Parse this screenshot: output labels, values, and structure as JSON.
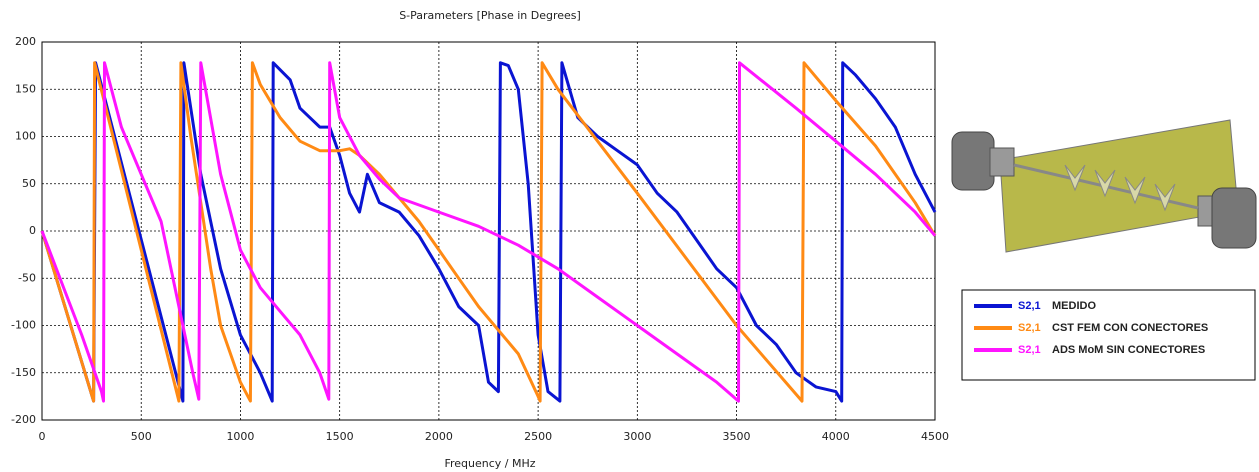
{
  "chart_data": {
    "type": "line",
    "title": "S-Parameters [Phase in Degrees]",
    "x_label": "Frequency / MHz",
    "xlim": [
      0,
      4500
    ],
    "xticks": [
      0,
      500,
      1000,
      1500,
      2000,
      2500,
      3000,
      3500,
      4000,
      4500
    ],
    "ylim": [
      -200,
      200
    ],
    "yticks": [
      -200,
      -150,
      -100,
      -50,
      0,
      50,
      100,
      150,
      200
    ],
    "grid": true,
    "series": [
      {
        "name": "MEDIDO",
        "parameter": "S2,1",
        "color": "#0a14d2",
        "x": [
          0,
          260,
          270,
          710,
          715,
          800,
          900,
          1000,
          1100,
          1160,
          1165,
          1250,
          1300,
          1400,
          1450,
          1500,
          1550,
          1600,
          1640,
          1700,
          1800,
          1900,
          2000,
          2100,
          2200,
          2250,
          2300,
          2310,
          2350,
          2400,
          2450,
          2500,
          2550,
          2610,
          2620,
          2700,
          2800,
          2900,
          3000,
          3100,
          3200,
          3300,
          3400,
          3500,
          3600,
          3700,
          3800,
          3900,
          4000,
          4030,
          4035,
          4100,
          4200,
          4300,
          4400,
          4450,
          4500
        ],
        "values": [
          0,
          -180,
          178,
          -180,
          178,
          60,
          -40,
          -110,
          -150,
          -180,
          178,
          160,
          130,
          110,
          110,
          80,
          40,
          20,
          60,
          30,
          20,
          -5,
          -40,
          -80,
          -100,
          -160,
          -170,
          178,
          175,
          150,
          50,
          -110,
          -170,
          -180,
          178,
          120,
          100,
          85,
          70,
          40,
          20,
          -10,
          -40,
          -60,
          -100,
          -120,
          -150,
          -165,
          -170,
          -180,
          178,
          165,
          140,
          110,
          60,
          40,
          20
        ]
      },
      {
        "name": "CST FEM CON CONECTORES",
        "parameter": "S2,1",
        "color": "#ff8a14",
        "x": [
          0,
          260,
          265,
          690,
          700,
          750,
          800,
          850,
          900,
          1000,
          1050,
          1060,
          1100,
          1200,
          1300,
          1400,
          1500,
          1550,
          1600,
          1700,
          1800,
          1900,
          2000,
          2100,
          2200,
          2300,
          2400,
          2500,
          2510,
          2520,
          2600,
          3000,
          3500,
          3830,
          3840,
          4000,
          4200,
          4400,
          4500
        ],
        "values": [
          0,
          -180,
          178,
          -180,
          178,
          100,
          30,
          -40,
          -100,
          -160,
          -180,
          178,
          155,
          120,
          95,
          85,
          85,
          87,
          80,
          60,
          35,
          10,
          -20,
          -50,
          -80,
          -105,
          -130,
          -175,
          -180,
          178,
          150,
          40,
          -100,
          -180,
          178,
          138,
          90,
          30,
          -5
        ]
      },
      {
        "name": "ADS MoM SIN CONECTORES",
        "parameter": "S2,1",
        "color": "#ff14ff",
        "x": [
          0,
          100,
          200,
          300,
          310,
          315,
          400,
          500,
          600,
          700,
          760,
          790,
          800,
          900,
          1000,
          1100,
          1200,
          1300,
          1400,
          1445,
          1450,
          1500,
          1600,
          1700,
          1800,
          2000,
          2200,
          2400,
          2600,
          2800,
          3000,
          3200,
          3400,
          3510,
          3515,
          3800,
          4000,
          4200,
          4400,
          4500
        ],
        "values": [
          0,
          -55,
          -110,
          -170,
          -180,
          178,
          110,
          60,
          10,
          -90,
          -150,
          -178,
          178,
          60,
          -20,
          -60,
          -85,
          -110,
          -150,
          -178,
          178,
          120,
          80,
          55,
          35,
          20,
          5,
          -15,
          -40,
          -70,
          -100,
          -130,
          -160,
          -180,
          178,
          130,
          95,
          60,
          20,
          -5
        ]
      }
    ]
  }
}
